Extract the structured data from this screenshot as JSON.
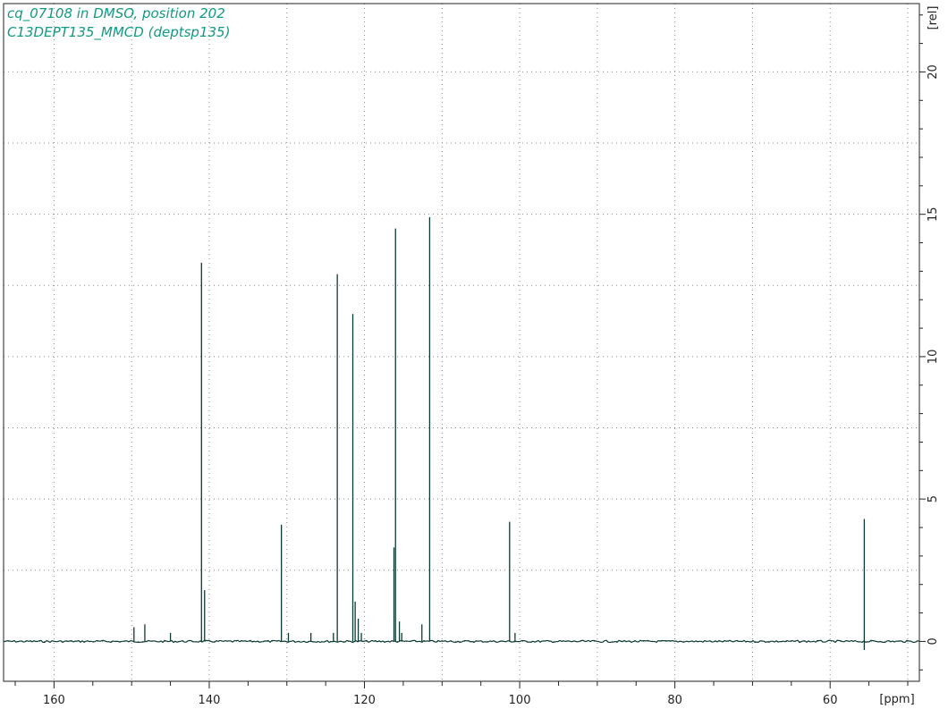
{
  "header": {
    "title_line1": "cq_07108 in DMSO, position 202",
    "title_line2": "C13DEPT135_MMCD (deptsp135)"
  },
  "colors": {
    "title": "#0f9a82",
    "trace": "#0b3b34",
    "axis": "#222222",
    "grid": "#8a8a8a"
  },
  "chart_data": {
    "type": "line",
    "xlabel": "[ppm]",
    "ylabel": "[rel]",
    "xlim": [
      166.5,
      48.5
    ],
    "ylim": [
      -1.4,
      22.4
    ],
    "x_reversed": true,
    "x_ticks": [
      160,
      140,
      120,
      100,
      80,
      60
    ],
    "y_ticks": [
      0,
      5,
      10,
      15,
      20
    ],
    "grid": true,
    "baseline": 0,
    "peaks": [
      {
        "ppm": 149.7,
        "height": 0.5
      },
      {
        "ppm": 148.3,
        "height": 0.6
      },
      {
        "ppm": 145.0,
        "height": 0.3
      },
      {
        "ppm": 141.0,
        "height": 13.3
      },
      {
        "ppm": 140.6,
        "height": 1.8
      },
      {
        "ppm": 130.7,
        "height": 4.1
      },
      {
        "ppm": 129.8,
        "height": 0.3
      },
      {
        "ppm": 126.9,
        "height": 0.3
      },
      {
        "ppm": 124.0,
        "height": 0.3
      },
      {
        "ppm": 123.5,
        "height": 12.9
      },
      {
        "ppm": 121.5,
        "height": 11.5
      },
      {
        "ppm": 121.2,
        "height": 1.4
      },
      {
        "ppm": 120.8,
        "height": 0.8
      },
      {
        "ppm": 120.4,
        "height": 0.3
      },
      {
        "ppm": 116.2,
        "height": 3.3
      },
      {
        "ppm": 116.0,
        "height": 14.5
      },
      {
        "ppm": 115.5,
        "height": 0.7
      },
      {
        "ppm": 115.2,
        "height": 0.3
      },
      {
        "ppm": 112.6,
        "height": 0.6
      },
      {
        "ppm": 111.6,
        "height": 14.9
      },
      {
        "ppm": 101.3,
        "height": 4.2
      },
      {
        "ppm": 100.6,
        "height": 0.3
      },
      {
        "ppm": 55.6,
        "height": 4.3
      }
    ],
    "negative_peaks": [
      {
        "ppm": 55.6,
        "height": -0.3
      }
    ]
  }
}
